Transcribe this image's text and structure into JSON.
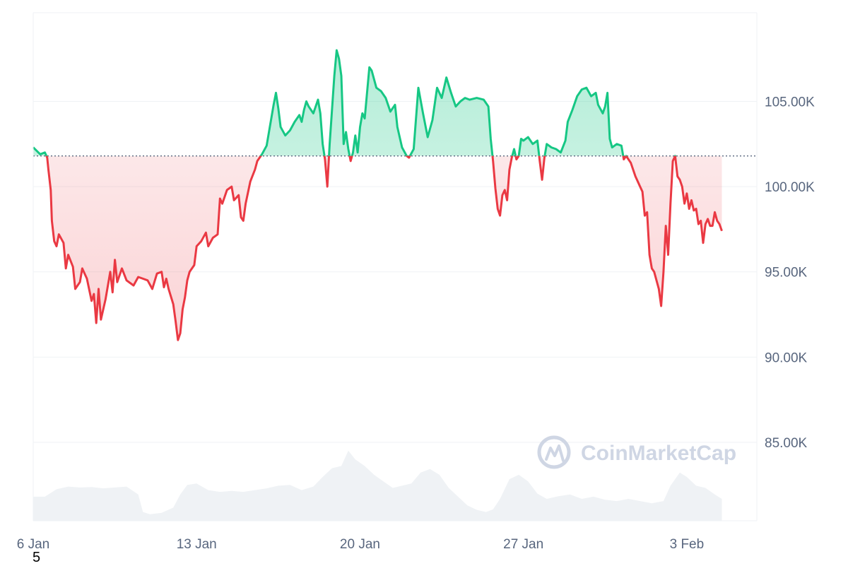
{
  "chart_data": {
    "type": "area",
    "title": "",
    "xlabel": "",
    "ylabel": "",
    "x_tick_labels": [
      "6 Jan",
      "13 Jan",
      "20 Jan",
      "27 Jan",
      "3 Feb"
    ],
    "y_tick_labels": [
      "85.00K",
      "90.00K",
      "95.00K",
      "100.00K",
      "105.00K"
    ],
    "y_ticks": [
      85000,
      90000,
      95000,
      100000,
      105000
    ],
    "ylim": [
      80400,
      110200
    ],
    "xlim_days": [
      0,
      31
    ],
    "baseline": 101800,
    "colors": {
      "above": "#16c784",
      "below": "#ea3943",
      "volume": "#eff2f5",
      "grid": "#eff2f5"
    },
    "grid": true,
    "watermark": "CoinMarketCap",
    "series": [
      {
        "values": [
          [
            0,
            102300
          ],
          [
            0.3,
            101900
          ],
          [
            0.5,
            102000
          ],
          [
            0.6,
            101700
          ],
          [
            0.65,
            101000
          ],
          [
            0.75,
            99800
          ],
          [
            0.8,
            98000
          ],
          [
            0.9,
            96800
          ],
          [
            1.0,
            96500
          ],
          [
            1.1,
            97200
          ],
          [
            1.3,
            96700
          ],
          [
            1.4,
            95200
          ],
          [
            1.5,
            96000
          ],
          [
            1.7,
            95300
          ],
          [
            1.8,
            94000
          ],
          [
            2.0,
            94400
          ],
          [
            2.1,
            95200
          ],
          [
            2.3,
            94600
          ],
          [
            2.5,
            93300
          ],
          [
            2.6,
            93700
          ],
          [
            2.7,
            92000
          ],
          [
            2.8,
            94000
          ],
          [
            2.9,
            92200
          ],
          [
            3.1,
            93400
          ],
          [
            3.2,
            94200
          ],
          [
            3.3,
            95000
          ],
          [
            3.4,
            93800
          ],
          [
            3.5,
            95700
          ],
          [
            3.6,
            94400
          ],
          [
            3.8,
            95200
          ],
          [
            4.0,
            94500
          ],
          [
            4.3,
            94200
          ],
          [
            4.5,
            94700
          ],
          [
            4.7,
            94600
          ],
          [
            4.9,
            94500
          ],
          [
            5.1,
            94000
          ],
          [
            5.3,
            94900
          ],
          [
            5.5,
            95000
          ],
          [
            5.6,
            94100
          ],
          [
            5.7,
            94600
          ],
          [
            5.8,
            94000
          ],
          [
            6.0,
            93100
          ],
          [
            6.1,
            92100
          ],
          [
            6.2,
            91000
          ],
          [
            6.3,
            91400
          ],
          [
            6.4,
            92800
          ],
          [
            6.5,
            93500
          ],
          [
            6.6,
            94500
          ],
          [
            6.7,
            95000
          ],
          [
            6.9,
            95400
          ],
          [
            7.0,
            96500
          ],
          [
            7.2,
            96800
          ],
          [
            7.4,
            97300
          ],
          [
            7.5,
            96500
          ],
          [
            7.7,
            97000
          ],
          [
            7.9,
            97200
          ],
          [
            8.0,
            99300
          ],
          [
            8.1,
            99000
          ],
          [
            8.3,
            99800
          ],
          [
            8.5,
            100000
          ],
          [
            8.6,
            99200
          ],
          [
            8.8,
            99500
          ],
          [
            8.9,
            98200
          ],
          [
            9.0,
            98000
          ],
          [
            9.1,
            99000
          ],
          [
            9.3,
            100300
          ],
          [
            9.5,
            101000
          ],
          [
            9.6,
            101500
          ],
          [
            9.8,
            101900
          ],
          [
            10.0,
            102400
          ],
          [
            10.1,
            103200
          ],
          [
            10.2,
            104000
          ],
          [
            10.3,
            104800
          ],
          [
            10.4,
            105500
          ],
          [
            10.5,
            104600
          ],
          [
            10.6,
            103500
          ],
          [
            10.8,
            103000
          ],
          [
            11.0,
            103300
          ],
          [
            11.2,
            103800
          ],
          [
            11.4,
            104200
          ],
          [
            11.5,
            103800
          ],
          [
            11.6,
            104500
          ],
          [
            11.7,
            105000
          ],
          [
            11.8,
            104700
          ],
          [
            12.0,
            104300
          ],
          [
            12.2,
            105100
          ],
          [
            12.3,
            104300
          ],
          [
            12.4,
            102500
          ],
          [
            12.5,
            101600
          ],
          [
            12.6,
            100000
          ],
          [
            12.7,
            102500
          ],
          [
            12.9,
            106500
          ],
          [
            13.0,
            108000
          ],
          [
            13.1,
            107500
          ],
          [
            13.2,
            106500
          ],
          [
            13.3,
            102500
          ],
          [
            13.4,
            103200
          ],
          [
            13.5,
            102200
          ],
          [
            13.6,
            101500
          ],
          [
            13.7,
            102000
          ],
          [
            13.8,
            103000
          ],
          [
            13.9,
            102000
          ],
          [
            14.0,
            103500
          ],
          [
            14.1,
            104300
          ],
          [
            14.2,
            104000
          ],
          [
            14.3,
            105500
          ],
          [
            14.4,
            107000
          ],
          [
            14.5,
            106800
          ],
          [
            14.7,
            105800
          ],
          [
            14.9,
            105600
          ],
          [
            15.1,
            105200
          ],
          [
            15.3,
            104400
          ],
          [
            15.5,
            104800
          ],
          [
            15.6,
            103500
          ],
          [
            15.8,
            102300
          ],
          [
            16.0,
            101800
          ],
          [
            16.1,
            101700
          ],
          [
            16.3,
            102200
          ],
          [
            16.5,
            105800
          ],
          [
            16.7,
            104300
          ],
          [
            16.9,
            102900
          ],
          [
            17.1,
            103900
          ],
          [
            17.3,
            105800
          ],
          [
            17.5,
            105200
          ],
          [
            17.7,
            106400
          ],
          [
            17.9,
            105500
          ],
          [
            18.1,
            104700
          ],
          [
            18.3,
            105000
          ],
          [
            18.5,
            105200
          ],
          [
            18.7,
            105100
          ],
          [
            19.0,
            105200
          ],
          [
            19.3,
            105100
          ],
          [
            19.5,
            104700
          ],
          [
            19.6,
            102800
          ],
          [
            19.7,
            101500
          ],
          [
            19.8,
            99900
          ],
          [
            19.9,
            98700
          ],
          [
            20.0,
            98300
          ],
          [
            20.1,
            99500
          ],
          [
            20.2,
            99800
          ],
          [
            20.3,
            99200
          ],
          [
            20.4,
            101000
          ],
          [
            20.5,
            101700
          ],
          [
            20.6,
            102200
          ],
          [
            20.7,
            101600
          ],
          [
            20.8,
            101800
          ],
          [
            20.9,
            102800
          ],
          [
            21.0,
            102700
          ],
          [
            21.2,
            102900
          ],
          [
            21.4,
            102500
          ],
          [
            21.6,
            102700
          ],
          [
            21.7,
            101500
          ],
          [
            21.8,
            100400
          ],
          [
            21.9,
            101700
          ],
          [
            22.0,
            102500
          ],
          [
            22.2,
            102300
          ],
          [
            22.4,
            102200
          ],
          [
            22.6,
            102000
          ],
          [
            22.8,
            102700
          ],
          [
            22.9,
            103800
          ],
          [
            23.1,
            104500
          ],
          [
            23.3,
            105300
          ],
          [
            23.5,
            105700
          ],
          [
            23.7,
            105800
          ],
          [
            23.9,
            105300
          ],
          [
            24.1,
            105500
          ],
          [
            24.2,
            104800
          ],
          [
            24.4,
            104300
          ],
          [
            24.5,
            104700
          ],
          [
            24.6,
            105500
          ],
          [
            24.7,
            102800
          ],
          [
            24.8,
            102300
          ],
          [
            25.0,
            102500
          ],
          [
            25.2,
            102400
          ],
          [
            25.3,
            101600
          ],
          [
            25.4,
            101800
          ],
          [
            25.6,
            101400
          ],
          [
            25.8,
            100600
          ],
          [
            26.0,
            100000
          ],
          [
            26.1,
            99700
          ],
          [
            26.2,
            98300
          ],
          [
            26.3,
            98500
          ],
          [
            26.4,
            96000
          ],
          [
            26.5,
            95200
          ],
          [
            26.6,
            95000
          ],
          [
            26.8,
            94000
          ],
          [
            26.9,
            93000
          ],
          [
            27.0,
            95000
          ],
          [
            27.1,
            97700
          ],
          [
            27.2,
            96000
          ],
          [
            27.3,
            99000
          ],
          [
            27.4,
            101500
          ],
          [
            27.5,
            101800
          ],
          [
            27.6,
            100600
          ],
          [
            27.7,
            100400
          ],
          [
            27.8,
            100000
          ],
          [
            27.9,
            99000
          ],
          [
            28.0,
            99600
          ],
          [
            28.1,
            98700
          ],
          [
            28.2,
            99200
          ],
          [
            28.3,
            98600
          ],
          [
            28.4,
            98700
          ],
          [
            28.5,
            97800
          ],
          [
            28.6,
            98000
          ],
          [
            28.7,
            96700
          ],
          [
            28.8,
            97800
          ],
          [
            28.9,
            98100
          ],
          [
            29.0,
            97700
          ],
          [
            29.1,
            97700
          ],
          [
            29.2,
            98500
          ],
          [
            29.3,
            98000
          ],
          [
            29.4,
            97800
          ],
          [
            29.5,
            97400
          ]
        ]
      }
    ],
    "volume": [
      [
        0,
        0.55
      ],
      [
        0.5,
        0.55
      ],
      [
        1.0,
        0.72
      ],
      [
        1.5,
        0.78
      ],
      [
        2.0,
        0.76
      ],
      [
        2.5,
        0.77
      ],
      [
        3.0,
        0.74
      ],
      [
        3.5,
        0.76
      ],
      [
        4.0,
        0.78
      ],
      [
        4.5,
        0.6
      ],
      [
        4.7,
        0.2
      ],
      [
        5.0,
        0.15
      ],
      [
        5.5,
        0.18
      ],
      [
        6.0,
        0.3
      ],
      [
        6.3,
        0.6
      ],
      [
        6.6,
        0.82
      ],
      [
        7.0,
        0.85
      ],
      [
        7.5,
        0.7
      ],
      [
        8.0,
        0.66
      ],
      [
        8.5,
        0.68
      ],
      [
        9.0,
        0.66
      ],
      [
        9.5,
        0.7
      ],
      [
        10.0,
        0.74
      ],
      [
        10.5,
        0.8
      ],
      [
        11.0,
        0.82
      ],
      [
        11.5,
        0.7
      ],
      [
        12.0,
        0.78
      ],
      [
        12.4,
        1.0
      ],
      [
        12.8,
        1.2
      ],
      [
        13.2,
        1.25
      ],
      [
        13.5,
        1.6
      ],
      [
        13.8,
        1.4
      ],
      [
        14.2,
        1.25
      ],
      [
        14.6,
        1.05
      ],
      [
        15.0,
        0.9
      ],
      [
        15.4,
        0.75
      ],
      [
        15.8,
        0.8
      ],
      [
        16.2,
        0.85
      ],
      [
        16.6,
        1.1
      ],
      [
        17.0,
        1.18
      ],
      [
        17.4,
        1.05
      ],
      [
        17.8,
        0.75
      ],
      [
        18.2,
        0.55
      ],
      [
        18.6,
        0.35
      ],
      [
        19.0,
        0.25
      ],
      [
        19.4,
        0.2
      ],
      [
        19.7,
        0.26
      ],
      [
        20.0,
        0.5
      ],
      [
        20.4,
        0.95
      ],
      [
        20.8,
        1.05
      ],
      [
        21.2,
        0.9
      ],
      [
        21.6,
        0.62
      ],
      [
        22.0,
        0.5
      ],
      [
        22.5,
        0.56
      ],
      [
        23.0,
        0.6
      ],
      [
        23.5,
        0.5
      ],
      [
        24.0,
        0.55
      ],
      [
        24.5,
        0.48
      ],
      [
        25.0,
        0.45
      ],
      [
        25.5,
        0.5
      ],
      [
        26.0,
        0.45
      ],
      [
        26.5,
        0.4
      ],
      [
        27.0,
        0.45
      ],
      [
        27.3,
        0.8
      ],
      [
        27.7,
        1.1
      ],
      [
        28.0,
        1.0
      ],
      [
        28.4,
        0.8
      ],
      [
        28.8,
        0.75
      ],
      [
        29.2,
        0.6
      ],
      [
        29.5,
        0.5
      ]
    ]
  },
  "footnote": "5"
}
